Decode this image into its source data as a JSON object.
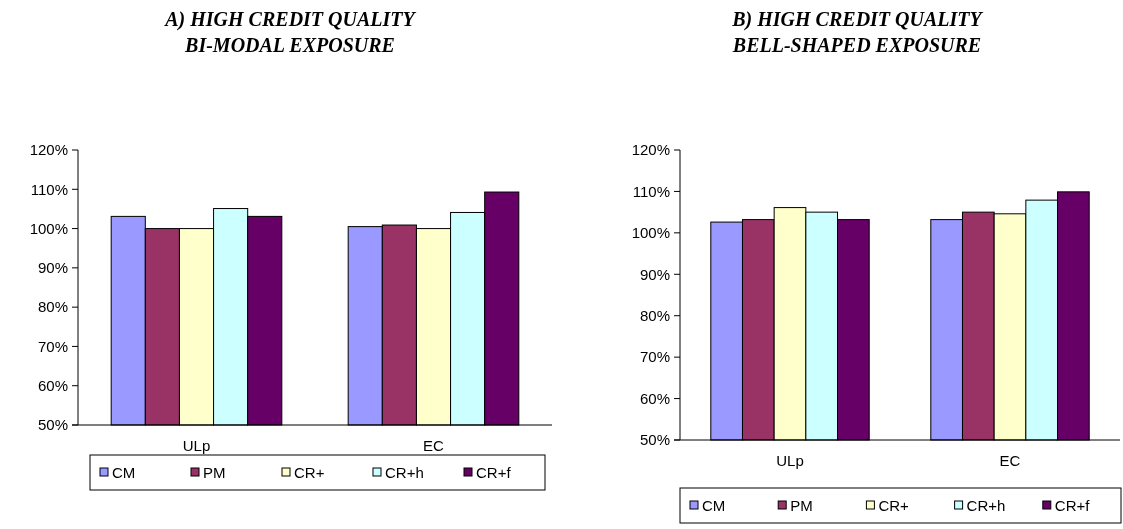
{
  "chart_data": [
    {
      "type": "bar",
      "title": "A) HIGH CREDIT QUALITY\nBI-MODAL EXPOSURE",
      "categories": [
        "ULp",
        "EC"
      ],
      "series": [
        {
          "name": "CM",
          "color": "#9999ff",
          "values": [
            103.1,
            100.5
          ]
        },
        {
          "name": "PM",
          "color": "#993366",
          "values": [
            100,
            100.9
          ]
        },
        {
          "name": "CR+",
          "color": "#ffffcc",
          "values": [
            100,
            100
          ]
        },
        {
          "name": "CR+h",
          "color": "#ccffff",
          "values": [
            105.1,
            104.1
          ]
        },
        {
          "name": "CR+f",
          "color": "#660066",
          "values": [
            103.1,
            109.3
          ]
        }
      ],
      "ylim": [
        50,
        120
      ],
      "yticks": [
        {
          "value": 50,
          "label": "50%"
        },
        {
          "value": 60,
          "label": "60%"
        },
        {
          "value": 70,
          "label": "70%"
        },
        {
          "value": 80,
          "label": "80%"
        },
        {
          "value": 90,
          "label": "90%"
        },
        {
          "value": 100,
          "label": "100%"
        },
        {
          "value": 110,
          "label": "110%"
        },
        {
          "value": 120,
          "label": "120%"
        }
      ],
      "grid": false,
      "legend": "bottom"
    },
    {
      "type": "bar",
      "title": "B) HIGH CREDIT QUALITY\nBELL-SHAPED EXPOSURE",
      "categories": [
        "ULp",
        "EC"
      ],
      "series": [
        {
          "name": "CM",
          "color": "#9999ff",
          "values": [
            102.6,
            103.2
          ]
        },
        {
          "name": "PM",
          "color": "#993366",
          "values": [
            103.2,
            105
          ]
        },
        {
          "name": "CR+",
          "color": "#ffffcc",
          "values": [
            106.1,
            104.6
          ]
        },
        {
          "name": "CR+h",
          "color": "#ccffff",
          "values": [
            105,
            107.9
          ]
        },
        {
          "name": "CR+f",
          "color": "#660066",
          "values": [
            103.2,
            109.9
          ]
        }
      ],
      "ylim": [
        50,
        120
      ],
      "yticks": [
        {
          "value": 50,
          "label": "50%"
        },
        {
          "value": 60,
          "label": "60%"
        },
        {
          "value": 70,
          "label": "70%"
        },
        {
          "value": 80,
          "label": "80%"
        },
        {
          "value": 90,
          "label": "90%"
        },
        {
          "value": 100,
          "label": "100%"
        },
        {
          "value": 110,
          "label": "110%"
        },
        {
          "value": 120,
          "label": "120%"
        }
      ],
      "grid": false,
      "legend": "bottom"
    }
  ]
}
